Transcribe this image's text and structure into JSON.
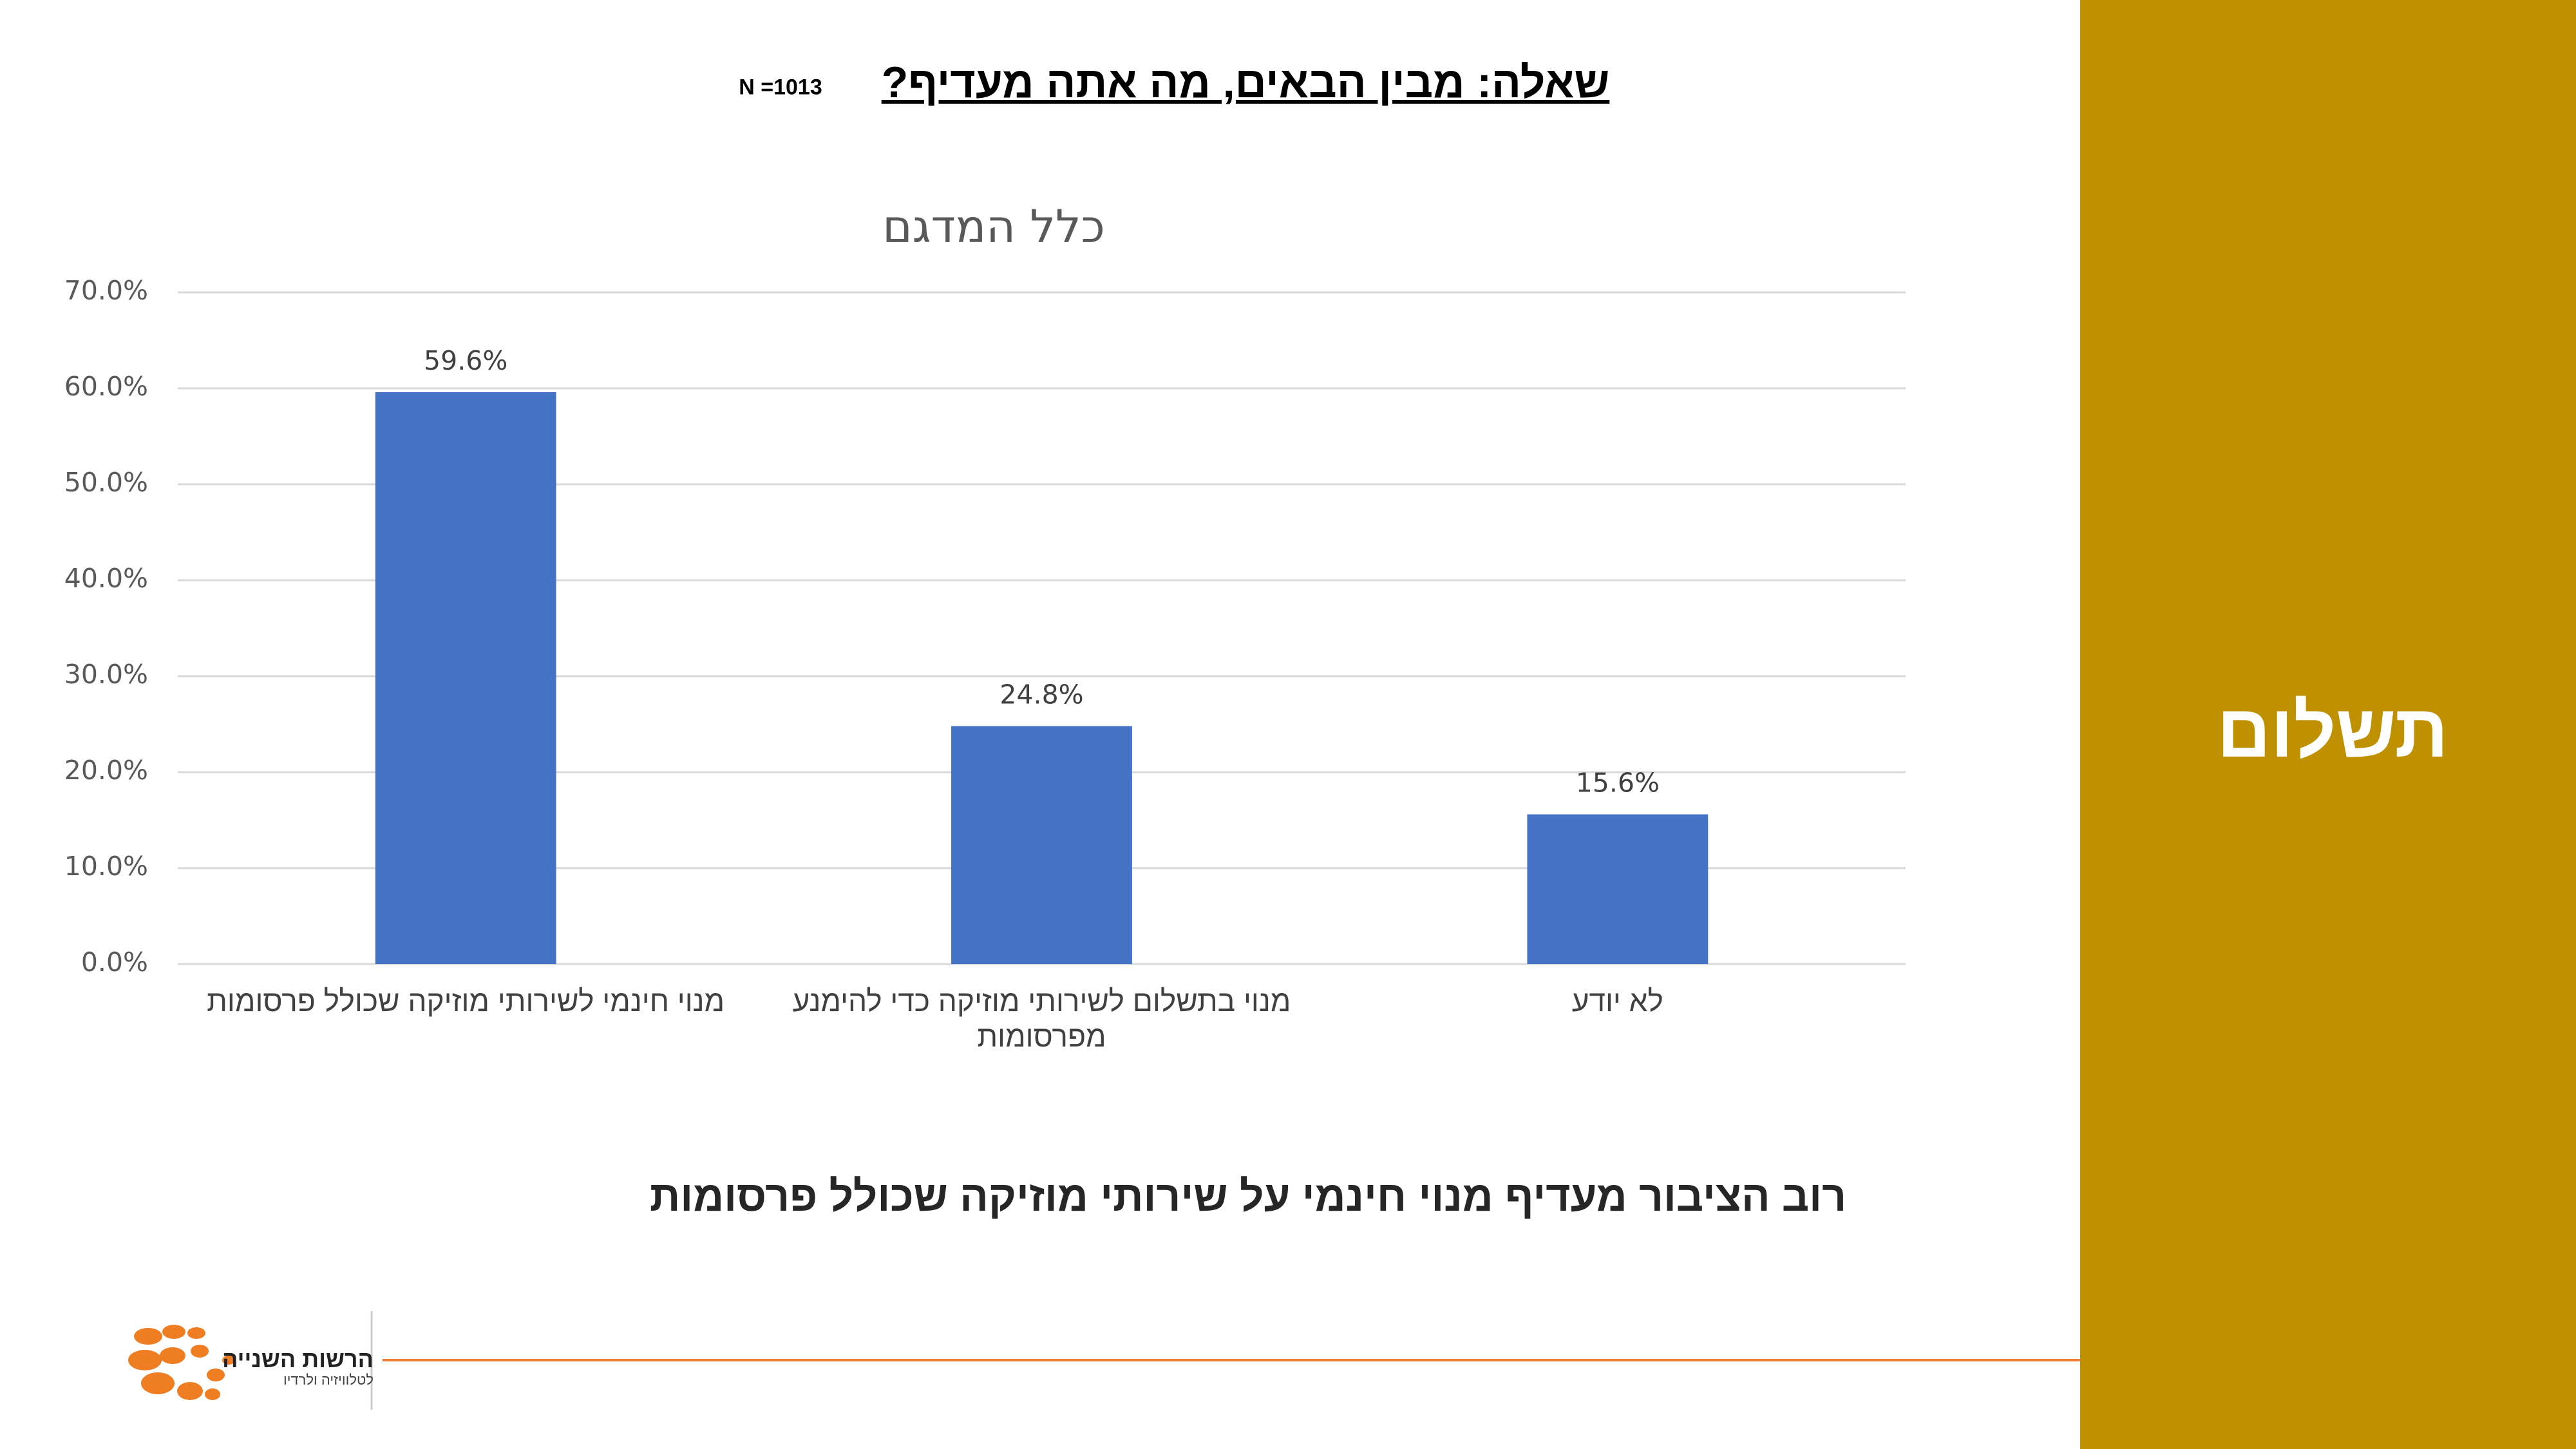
{
  "header": {
    "title": "שאלה: מבין הבאים, מה אתה מעדיף?",
    "sample": "N =1013"
  },
  "side_label": "תשלום",
  "conclusion": "רוב הציבור מעדיף מנוי חינמי על שירותי מוזיקה שכולל פרסומות",
  "logo": {
    "name": "הרשות השנייה",
    "subtitle": "לטלוויזיה ולרדיו"
  },
  "chart_data": {
    "type": "bar",
    "title": "כלל המדגם",
    "categories": [
      "מנוי חינמי לשירותי מוזיקה שכולל פרסומות",
      "מנוי בתשלום לשירותי מוזיקה כדי להימנע מפרסומות",
      "לא יודע"
    ],
    "values": [
      59.6,
      24.8,
      15.6
    ],
    "value_labels": [
      "59.6%",
      "24.8%",
      "15.6%"
    ],
    "color": "#4472c4",
    "ylim": [
      0,
      70
    ],
    "yticks": [
      {
        "value": 0,
        "label": "0.0%"
      },
      {
        "value": 10,
        "label": "10.0%"
      },
      {
        "value": 20,
        "label": "20.0%"
      },
      {
        "value": 30,
        "label": "30.0%"
      },
      {
        "value": 40,
        "label": "40.0%"
      },
      {
        "value": 50,
        "label": "50.0%"
      },
      {
        "value": 60,
        "label": "60.0%"
      },
      {
        "value": 70,
        "label": "70.0%"
      }
    ],
    "grid": true
  }
}
